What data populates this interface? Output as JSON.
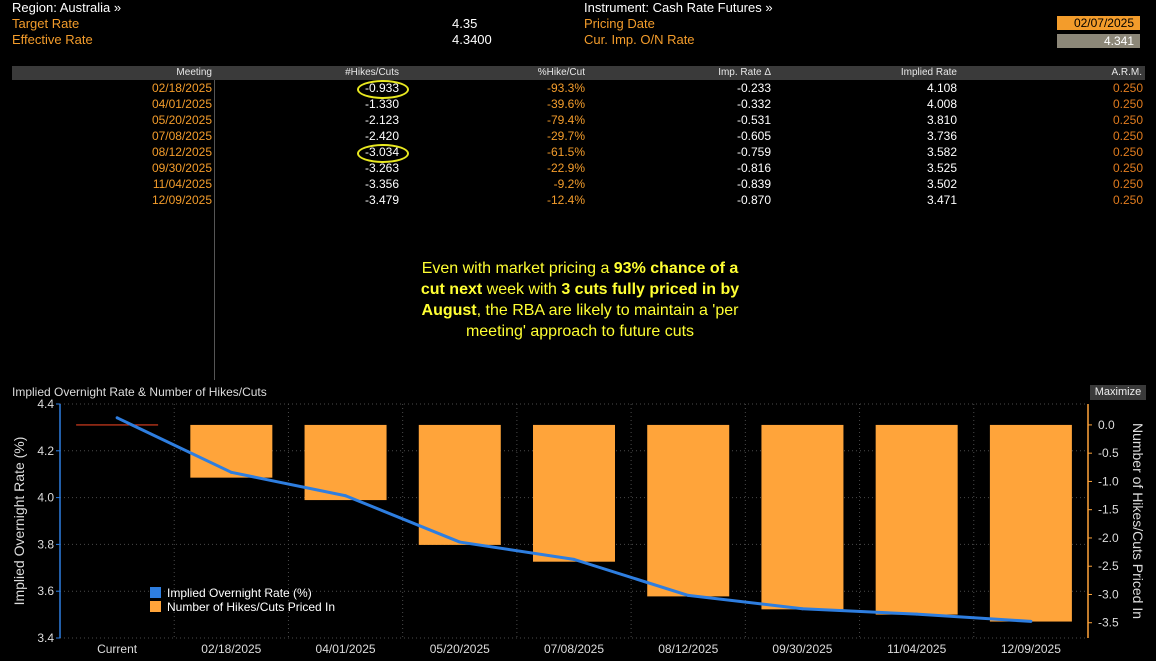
{
  "header": {
    "region_label": "Region: Australia »",
    "target_rate_label": "Target Rate",
    "target_rate_value": "4.35",
    "effective_rate_label": "Effective Rate",
    "effective_rate_value": "4.3400",
    "instrument_label": "Instrument: Cash Rate Futures »",
    "pricing_date_label": "Pricing Date",
    "pricing_date_value": "02/07/2025",
    "cur_imp_label": "Cur. Imp. O/N Rate",
    "cur_imp_value": "4.341"
  },
  "table": {
    "columns": [
      "Meeting",
      "#Hikes/Cuts",
      "%Hike/Cut",
      "Imp. Rate Δ",
      "Implied Rate",
      "A.R.M."
    ],
    "rows": [
      [
        "02/18/2025",
        "-0.933",
        "-93.3%",
        "-0.233",
        "4.108",
        "0.250"
      ],
      [
        "04/01/2025",
        "-1.330",
        "-39.6%",
        "-0.332",
        "4.008",
        "0.250"
      ],
      [
        "05/20/2025",
        "-2.123",
        "-79.4%",
        "-0.531",
        "3.810",
        "0.250"
      ],
      [
        "07/08/2025",
        "-2.420",
        "-29.7%",
        "-0.605",
        "3.736",
        "0.250"
      ],
      [
        "08/12/2025",
        "-3.034",
        "-61.5%",
        "-0.759",
        "3.582",
        "0.250"
      ],
      [
        "09/30/2025",
        "-3.263",
        "-22.9%",
        "-0.816",
        "3.525",
        "0.250"
      ],
      [
        "11/04/2025",
        "-3.356",
        "-9.2%",
        "-0.839",
        "3.502",
        "0.250"
      ],
      [
        "12/09/2025",
        "-3.479",
        "-12.4%",
        "-0.870",
        "3.471",
        "0.250"
      ]
    ]
  },
  "annotation": {
    "p1": "Even with market pricing a ",
    "b1": "93% chance of a cut next",
    "p2": " week with ",
    "b2": "3 cuts fully priced in by August",
    "p3": ", the RBA are likely to maintain a 'per meeting' approach to future cuts"
  },
  "chart_title": "Implied Overnight Rate & Number of Hikes/Cuts",
  "maximize_label": "Maximize",
  "colors": {
    "orange": "#f39c2b",
    "bar": "#ffa43a",
    "line": "#2e7ee0",
    "annotation": "#ffff33"
  },
  "chart_data": {
    "type": "bar",
    "categories": [
      "Current",
      "02/18/2025",
      "04/01/2025",
      "05/20/2025",
      "07/08/2025",
      "08/12/2025",
      "09/30/2025",
      "11/04/2025",
      "12/09/2025"
    ],
    "series": [
      {
        "name": "Implied Overnight Rate (%)",
        "type": "line",
        "axis": "left",
        "values": [
          4.341,
          4.108,
          4.008,
          3.81,
          3.736,
          3.582,
          3.525,
          3.502,
          3.471
        ]
      },
      {
        "name": "Number of Hikes/Cuts Priced In",
        "type": "bar",
        "axis": "right",
        "values": [
          0,
          -0.933,
          -1.33,
          -2.123,
          -2.42,
          -3.034,
          -3.263,
          -3.356,
          -3.479
        ]
      }
    ],
    "ylabel_left": "Implied Overnight Rate (%)",
    "ylabel_right": "Number of Hikes/Cuts Priced In",
    "ylim_left": [
      3.4,
      4.4
    ],
    "yticks_left": [
      "3.4",
      "3.6",
      "3.8",
      "4.0",
      "4.2",
      "4.4"
    ],
    "ylim_right": [
      -3.77,
      0.37
    ],
    "yticks_right": [
      "0.0",
      "-0.5",
      "-1.0",
      "-1.5",
      "-2.0",
      "-2.5",
      "-3.0",
      "-3.5"
    ],
    "legend_position": "bottom-left",
    "grid": true
  }
}
